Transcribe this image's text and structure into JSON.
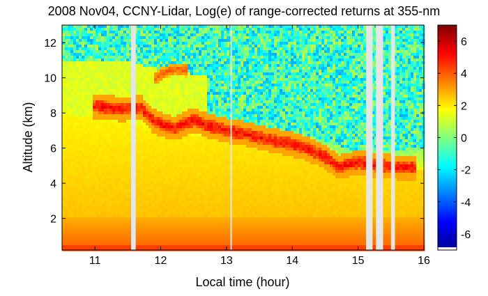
{
  "chart_data": {
    "type": "heatmap",
    "title": "2008 Nov04, CCNY-Lidar, Log(e) of range-corrected returns at 355-nm",
    "xlabel": "Local time (hour)",
    "ylabel": "Altitude (km)",
    "xlim": [
      10.5,
      16.0
    ],
    "ylim": [
      0.2,
      13.0
    ],
    "x_ticks": [
      "11",
      "12",
      "13",
      "14",
      "15",
      "16"
    ],
    "y_ticks": [
      "2",
      "4",
      "6",
      "8",
      "10",
      "12"
    ],
    "colorbar": {
      "range": [
        -7,
        7
      ],
      "ticks": [
        "6",
        "4",
        "2",
        "0",
        "-2",
        "-4",
        "-6"
      ],
      "colormap": "jet"
    },
    "data_gaps_hours": [
      [
        11.55,
        11.62
      ],
      [
        13.06,
        13.08
      ],
      [
        15.12,
        15.22
      ],
      [
        15.27,
        15.38
      ],
      [
        15.5,
        15.56
      ]
    ],
    "features": {
      "boundary_layer_top": {
        "time": [
          10.5,
          11.0,
          11.5,
          12.0,
          12.5,
          13.0,
          13.5,
          14.0,
          14.5,
          15.0,
          15.5,
          16.0
        ],
        "altitude_km": [
          7.9,
          7.7,
          7.4,
          7.0,
          6.7,
          6.5,
          6.1,
          5.8,
          5.2,
          4.6,
          4.7,
          4.8
        ]
      },
      "cloud_layer": {
        "time": [
          10.95,
          11.2,
          11.4,
          11.7,
          11.9,
          12.2,
          12.5,
          12.7,
          13.0,
          13.3,
          13.6,
          13.9,
          14.2,
          14.5,
          14.7,
          15.0,
          15.3,
          15.6,
          15.9
        ],
        "altitude_km": [
          8.4,
          8.3,
          8.2,
          8.3,
          7.5,
          7.1,
          7.6,
          7.3,
          7.0,
          6.8,
          6.5,
          6.3,
          6.0,
          5.5,
          4.9,
          5.2,
          5.0,
          4.9,
          4.9
        ]
      },
      "upper_cloud": {
        "time": [
          11.9,
          12.0,
          12.2,
          12.4
        ],
        "altitude_km": [
          9.9,
          10.2,
          10.5,
          10.4
        ]
      },
      "near_surface_layer_km": [
        0.3,
        2.0
      ]
    }
  }
}
